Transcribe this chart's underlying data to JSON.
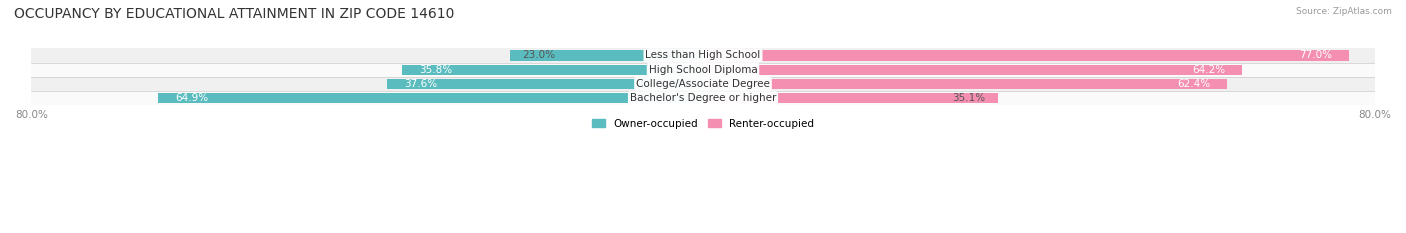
{
  "title": "OCCUPANCY BY EDUCATIONAL ATTAINMENT IN ZIP CODE 14610",
  "source": "Source: ZipAtlas.com",
  "categories": [
    "Less than High School",
    "High School Diploma",
    "College/Associate Degree",
    "Bachelor's Degree or higher"
  ],
  "owner_pct": [
    23.0,
    35.8,
    37.6,
    64.9
  ],
  "renter_pct": [
    77.0,
    64.2,
    62.4,
    35.1
  ],
  "owner_color": "#5bbcbf",
  "renter_color": "#f48fb1",
  "row_bg_colors": [
    "#f0f0f0",
    "#fafafa",
    "#f0f0f0",
    "#fafafa"
  ],
  "title_fontsize": 10,
  "label_fontsize": 7.5,
  "tick_fontsize": 7.5,
  "x_left_label": "80.0%",
  "x_right_label": "80.0%",
  "xlim_left": -80,
  "xlim_right": 80,
  "legend_owner": "Owner-occupied",
  "legend_renter": "Renter-occupied",
  "background_color": "#ffffff"
}
